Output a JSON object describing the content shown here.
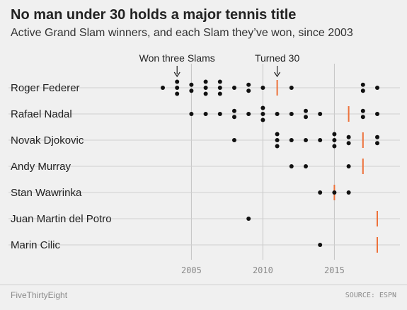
{
  "header": {
    "title": "No man under 30 holds a major tennis title",
    "subtitle": "Active Grand Slam winners, and each Slam they’ve won, since 2003"
  },
  "footer": {
    "brand": "FiveThirtyEight",
    "source": "SOURCE: ESPN"
  },
  "colors": {
    "dot": "#111111",
    "turned30": "#ed713a",
    "rowline": "#cfcfcf",
    "gridline": "#c4c4c4",
    "axis_text": "#8a8a8a"
  },
  "chart_data": {
    "type": "scatter",
    "title": "No man under 30 holds a major tennis title",
    "subtitle": "Active Grand Slam winners, and each Slam they’ve won, since 2003",
    "xlim": [
      2001.6,
      2018.6
    ],
    "x_ticks": [
      "2005",
      "2010",
      "2015"
    ],
    "grid": true,
    "annotations": [
      {
        "text": "Won three Slams",
        "x": 2004
      },
      {
        "text": "Turned 30",
        "x": 2011
      }
    ],
    "series": [
      {
        "name": "Roger Federer",
        "turned_30": 2011,
        "slams": [
          [
            2003,
            1
          ],
          [
            2004,
            3
          ],
          [
            2005,
            2
          ],
          [
            2006,
            3
          ],
          [
            2007,
            3
          ],
          [
            2008,
            1
          ],
          [
            2009,
            2
          ],
          [
            2010,
            1
          ],
          [
            2012,
            1
          ],
          [
            2017,
            2
          ],
          [
            2018,
            1
          ]
        ]
      },
      {
        "name": "Rafael Nadal",
        "turned_30": 2016,
        "slams": [
          [
            2005,
            1
          ],
          [
            2006,
            1
          ],
          [
            2007,
            1
          ],
          [
            2008,
            2
          ],
          [
            2009,
            1
          ],
          [
            2010,
            3
          ],
          [
            2011,
            1
          ],
          [
            2012,
            1
          ],
          [
            2013,
            2
          ],
          [
            2014,
            1
          ],
          [
            2017,
            2
          ],
          [
            2018,
            1
          ]
        ]
      },
      {
        "name": "Novak Djokovic",
        "turned_30": 2017,
        "slams": [
          [
            2008,
            1
          ],
          [
            2011,
            3
          ],
          [
            2012,
            1
          ],
          [
            2013,
            1
          ],
          [
            2014,
            1
          ],
          [
            2015,
            3
          ],
          [
            2016,
            2
          ],
          [
            2018,
            2
          ]
        ]
      },
      {
        "name": "Andy Murray",
        "turned_30": 2017,
        "slams": [
          [
            2012,
            1
          ],
          [
            2013,
            1
          ],
          [
            2016,
            1
          ]
        ]
      },
      {
        "name": "Stan Wawrinka",
        "turned_30": 2015,
        "slams": [
          [
            2014,
            1
          ],
          [
            2015,
            1
          ],
          [
            2016,
            1
          ]
        ]
      },
      {
        "name": "Juan Martin del Potro",
        "turned_30": 2018,
        "slams": [
          [
            2009,
            1
          ]
        ]
      },
      {
        "name": "Marin Cilic",
        "turned_30": 2018,
        "slams": [
          [
            2014,
            1
          ]
        ]
      }
    ]
  }
}
